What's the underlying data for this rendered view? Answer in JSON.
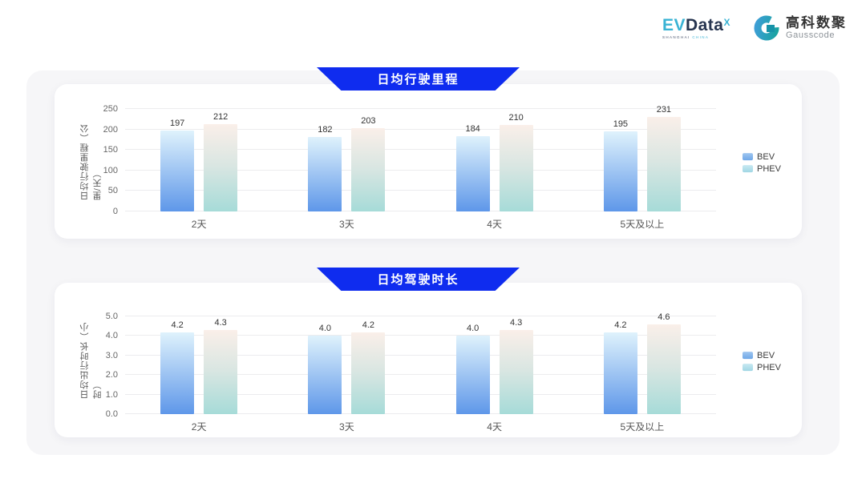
{
  "header": {
    "evdata_logo": {
      "ev": "EV",
      "data": "Data",
      "sup": "X",
      "sub_left": "SHANGHAI",
      "sub_right": "CHINA"
    },
    "gausscode_logo": {
      "cn": "高科数聚",
      "en": "Gausscode"
    }
  },
  "colors": {
    "banner_blue": "#0f2cef",
    "bev_gradient_top": "#dff2fc",
    "bev_gradient_bottom": "#5e97e9",
    "phev_gradient_top": "#faefe9",
    "phev_gradient_mid": "#d9e6e2",
    "phev_gradient_bottom": "#a6dbd8",
    "legend_bev": "#6fa7e8",
    "legend_phev": "#a0d6e4",
    "logo_teal": "#3ab3d4",
    "logo_navy": "#273550"
  },
  "chart_data": [
    {
      "type": "bar",
      "title": "日均行驶里程",
      "ylabel": "日均行驶里程（公里/天）",
      "xlabel": "",
      "categories": [
        "2天",
        "3天",
        "4天",
        "5天及以上"
      ],
      "series": [
        {
          "name": "BEV",
          "values": [
            197,
            182,
            184,
            195
          ]
        },
        {
          "name": "PHEV",
          "values": [
            212,
            203,
            210,
            231
          ]
        }
      ],
      "ylim": [
        0,
        250
      ],
      "yticks": [
        0,
        50,
        100,
        150,
        200,
        250
      ],
      "ytick_labels": [
        "0",
        "50",
        "100",
        "150",
        "200",
        "250"
      ],
      "value_decimals": 0,
      "grid": true,
      "legend_position": "right"
    },
    {
      "type": "bar",
      "title": "日均驾驶时长",
      "ylabel": "日均出行时长（小时）",
      "xlabel": "",
      "categories": [
        "2天",
        "3天",
        "4天",
        "5天及以上"
      ],
      "series": [
        {
          "name": "BEV",
          "values": [
            4.2,
            4.0,
            4.0,
            4.2
          ]
        },
        {
          "name": "PHEV",
          "values": [
            4.3,
            4.2,
            4.3,
            4.6
          ]
        }
      ],
      "ylim": [
        0,
        5
      ],
      "yticks": [
        0,
        1,
        2,
        3,
        4,
        5
      ],
      "ytick_labels": [
        "0.0",
        "1.0",
        "2.0",
        "3.0",
        "4.0",
        "5.0"
      ],
      "value_decimals": 1,
      "grid": true,
      "legend_position": "right"
    }
  ]
}
